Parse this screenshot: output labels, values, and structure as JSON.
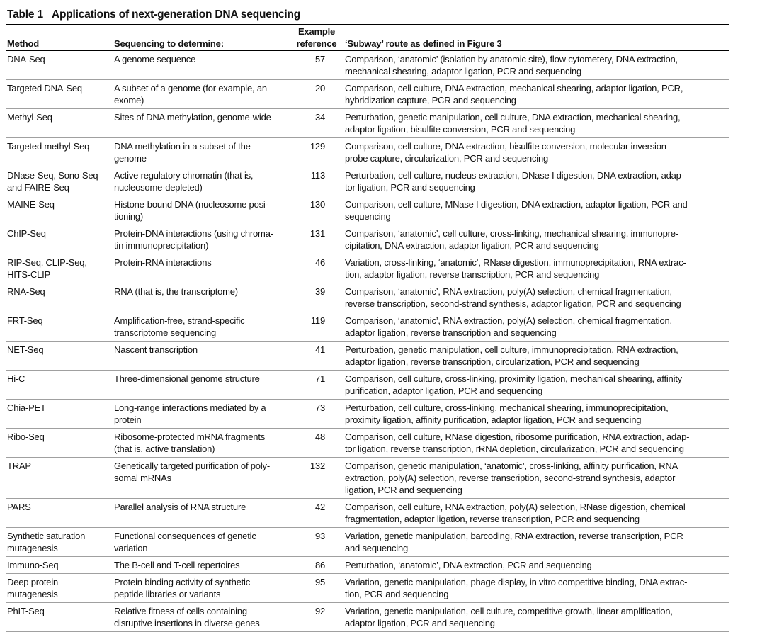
{
  "title": {
    "label": "Table 1",
    "text": "Applications of next-generation DNA sequencing"
  },
  "table": {
    "headers": [
      [
        "Method"
      ],
      [
        "Sequencing to determine:"
      ],
      [
        "Example",
        "reference"
      ],
      [
        "‘Subway’ route as defined in Figure 3"
      ]
    ],
    "rows": [
      {
        "method": [
          "DNA-Seq"
        ],
        "determine": [
          "A genome sequence"
        ],
        "reference": 57,
        "route": [
          "Comparison, ‘anatomic’ (isolation by anatomic site), flow cytometery, DNA extraction,",
          "mechanical shearing, adaptor ligation, PCR and sequencing"
        ]
      },
      {
        "method": [
          "Targeted DNA-Seq"
        ],
        "determine": [
          "A subset of a genome (for example, an",
          "exome)"
        ],
        "reference": 20,
        "route": [
          "Comparison, cell culture, DNA extraction, mechanical shearing, adaptor ligation, PCR,",
          "hybridization capture, PCR and sequencing"
        ]
      },
      {
        "method": [
          "Methyl-Seq"
        ],
        "determine": [
          "Sites of DNA methylation, genome-wide"
        ],
        "reference": 34,
        "route": [
          "Perturbation, genetic manipulation, cell culture, DNA extraction, mechanical shearing,",
          "adaptor ligation, bisulfite conversion, PCR and sequencing"
        ]
      },
      {
        "method": [
          "Targeted methyl-Seq"
        ],
        "determine": [
          "DNA methylation in a subset of the",
          "genome"
        ],
        "reference": 129,
        "route": [
          "Comparison, cell culture, DNA extraction, bisulfite conversion, molecular inversion",
          "probe capture, circularization, PCR and sequencing"
        ]
      },
      {
        "method": [
          "DNase-Seq, Sono-Seq",
          "and FAIRE-Seq"
        ],
        "determine": [
          "Active regulatory chromatin (that is,",
          "nucleosome-depleted)"
        ],
        "reference": 113,
        "route": [
          "Perturbation, cell culture, nucleus extraction, DNase I digestion, DNA extraction, adap-",
          "tor ligation, PCR and sequencing"
        ]
      },
      {
        "method": [
          "MAINE-Seq"
        ],
        "determine": [
          "Histone-bound DNA (nucleosome posi-",
          "tioning)"
        ],
        "reference": 130,
        "route": [
          "Comparison, cell culture, MNase I digestion, DNA extraction, adaptor ligation, PCR and",
          "sequencing"
        ]
      },
      {
        "method": [
          "ChIP-Seq"
        ],
        "determine": [
          "Protein-DNA interactions (using chroma-",
          "tin immunoprecipitation)"
        ],
        "reference": 131,
        "route": [
          "Comparison, ‘anatomic’, cell culture, cross-linking, mechanical shearing, immunopre-",
          "cipitation, DNA extraction, adaptor ligation, PCR and sequencing"
        ]
      },
      {
        "method": [
          "RIP-Seq, CLIP-Seq,",
          "HITS-CLIP"
        ],
        "determine": [
          "Protein-RNA interactions"
        ],
        "reference": 46,
        "route": [
          "Variation, cross-linking, ‘anatomic’, RNase digestion, immunoprecipitation, RNA extrac-",
          "tion, adaptor ligation, reverse transcription, PCR and sequencing"
        ]
      },
      {
        "method": [
          "RNA-Seq"
        ],
        "determine": [
          "RNA (that is, the transcriptome)"
        ],
        "reference": 39,
        "route": [
          "Comparison, ‘anatomic’, RNA extraction, poly(A) selection, chemical fragmentation,",
          "reverse transcription, second-strand synthesis, adaptor ligation, PCR and sequencing"
        ]
      },
      {
        "method": [
          "FRT-Seq"
        ],
        "determine": [
          "Amplification-free, strand-specific",
          "transcriptome sequencing"
        ],
        "reference": 119,
        "route": [
          "Comparison, ‘anatomic’, RNA extraction, poly(A) selection, chemical fragmentation,",
          "adaptor ligation, reverse transcription and sequencing"
        ]
      },
      {
        "method": [
          "NET-Seq"
        ],
        "determine": [
          "Nascent transcription"
        ],
        "reference": 41,
        "route": [
          "Perturbation, genetic manipulation, cell culture, immunoprecipitation, RNA extraction,",
          "adaptor ligation, reverse transcription, circularization, PCR and sequencing"
        ]
      },
      {
        "method": [
          "Hi-C"
        ],
        "determine": [
          "Three-dimensional genome structure"
        ],
        "reference": 71,
        "route": [
          "Comparison, cell culture, cross-linking, proximity ligation, mechanical shearing, affinity",
          "purification, adaptor ligation, PCR and sequencing"
        ]
      },
      {
        "method": [
          "Chia-PET"
        ],
        "determine": [
          "Long-range interactions mediated by a",
          "protein"
        ],
        "reference": 73,
        "route": [
          "Perturbation, cell culture, cross-linking, mechanical shearing, immunoprecipitation,",
          "proximity ligation, affinity purification, adaptor ligation, PCR and sequencing"
        ]
      },
      {
        "method": [
          "Ribo-Seq"
        ],
        "determine": [
          "Ribosome-protected mRNA fragments",
          "(that is, active translation)"
        ],
        "reference": 48,
        "route": [
          "Comparison, cell culture, RNase digestion, ribosome purification, RNA extraction, adap-",
          "tor ligation, reverse transcription, rRNA depletion, circularization, PCR and sequencing"
        ]
      },
      {
        "method": [
          "TRAP"
        ],
        "determine": [
          "Genetically targeted purification of poly-",
          "somal mRNAs"
        ],
        "reference": 132,
        "route": [
          "Comparison, genetic manipulation, ‘anatomic’, cross-linking, affinity purification, RNA",
          "extraction, poly(A) selection, reverse transcription, second-strand synthesis, adaptor",
          "ligation, PCR and sequencing"
        ]
      },
      {
        "method": [
          "PARS"
        ],
        "determine": [
          "Parallel analysis of RNA structure"
        ],
        "reference": 42,
        "route": [
          "Comparison, cell culture, RNA extraction, poly(A) selection, RNase digestion, chemical",
          "fragmentation, adaptor ligation, reverse transcription, PCR and sequencing"
        ]
      },
      {
        "method": [
          "Synthetic saturation",
          "mutagenesis"
        ],
        "determine": [
          "Functional consequences of genetic",
          "variation"
        ],
        "reference": 93,
        "route": [
          "Variation, genetic manipulation, barcoding, RNA extraction, reverse transcription, PCR",
          "and sequencing"
        ]
      },
      {
        "method": [
          "Immuno-Seq"
        ],
        "determine": [
          "The B-cell and T-cell repertoires"
        ],
        "reference": 86,
        "route": [
          "Perturbation, ‘anatomic’, DNA extraction, PCR and sequencing"
        ]
      },
      {
        "method": [
          "Deep protein",
          "mutagenesis"
        ],
        "determine": [
          "Protein binding activity of synthetic",
          "peptide libraries or variants"
        ],
        "reference": 95,
        "route": [
          "Variation, genetic manipulation, phage display, in vitro competitive binding, DNA extrac-",
          "tion, PCR and sequencing"
        ]
      },
      {
        "method": [
          "PhIT-Seq"
        ],
        "determine": [
          "Relative fitness of cells containing",
          "disruptive insertions in diverse genes"
        ],
        "reference": 92,
        "route": [
          "Variation, genetic manipulation, cell culture, competitive growth, linear amplification,",
          "adaptor ligation, PCR and sequencing"
        ]
      }
    ]
  }
}
